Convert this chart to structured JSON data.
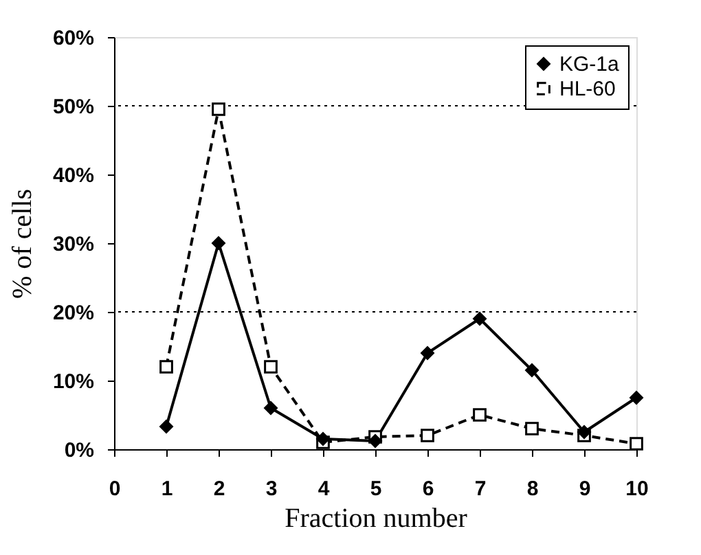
{
  "chart_data": {
    "type": "line",
    "xlabel": "Fraction number",
    "ylabel": "% of cells",
    "x": [
      1,
      2,
      3,
      4,
      5,
      6,
      7,
      8,
      9,
      10
    ],
    "series": [
      {
        "name": "KG-1a",
        "color": "#000000",
        "marker": "diamond",
        "line_style": "solid",
        "values": [
          3.3,
          30,
          6,
          1.5,
          1.2,
          14,
          19,
          11.5,
          2.5,
          7.5
        ]
      },
      {
        "name": "HL-60",
        "color": "#000000",
        "marker": "square",
        "line_style": "dashed",
        "values": [
          12,
          49.5,
          12,
          1,
          1.8,
          2,
          5,
          3,
          2,
          0.8
        ]
      }
    ],
    "xlim": [
      0,
      10
    ],
    "xticks": [
      0,
      1,
      2,
      3,
      4,
      5,
      6,
      7,
      8,
      9,
      10
    ],
    "ylim": [
      0,
      60
    ],
    "yticks": [
      {
        "value": 0,
        "label": "0%"
      },
      {
        "value": 10,
        "label": "10%"
      },
      {
        "value": 20,
        "label": "20%"
      },
      {
        "value": 30,
        "label": "30%"
      },
      {
        "value": 40,
        "label": "40%"
      },
      {
        "value": 50,
        "label": "50%"
      },
      {
        "value": 60,
        "label": "60%"
      }
    ],
    "ref_lines": [
      {
        "axis": "y",
        "value": 50,
        "color": "#000000",
        "line_style": "dotted"
      },
      {
        "axis": "y",
        "value": 20,
        "color": "#000000",
        "line_style": "dotted"
      }
    ],
    "legend": "top right",
    "grid": false
  }
}
